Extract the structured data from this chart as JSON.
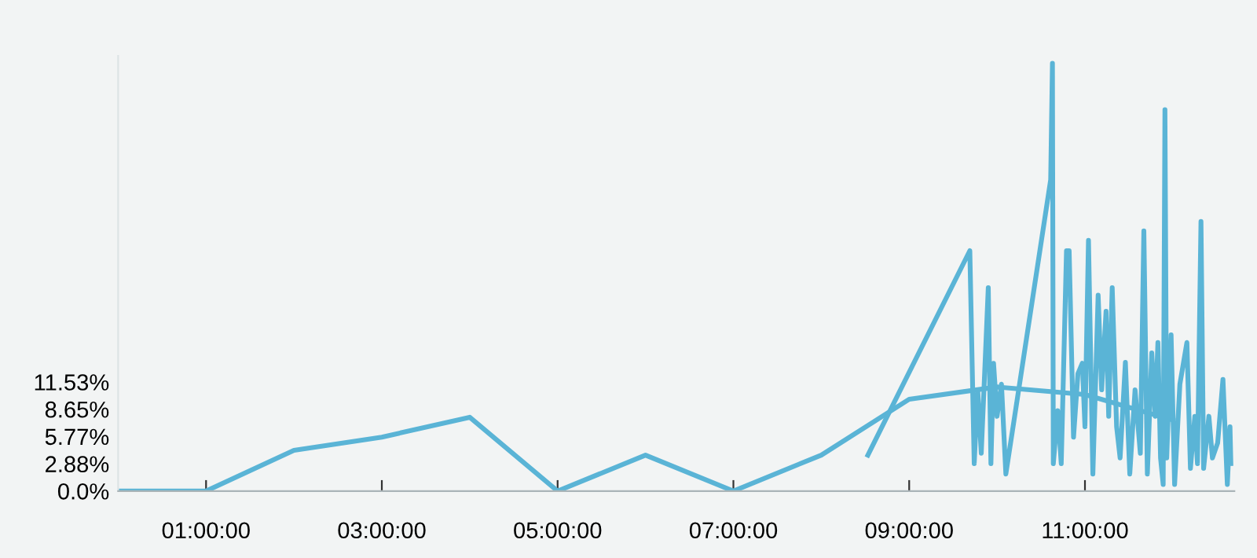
{
  "chart_data": {
    "type": "line",
    "xlim": [
      0,
      12.7
    ],
    "xticks": [
      {
        "value": 1,
        "label": "01:00:00"
      },
      {
        "value": 3,
        "label": "03:00:00"
      },
      {
        "value": 5,
        "label": "05:00:00"
      },
      {
        "value": 7,
        "label": "07:00:00"
      },
      {
        "value": 9,
        "label": "09:00:00"
      },
      {
        "value": 11,
        "label": "11:00:00"
      }
    ],
    "ylim": [
      0,
      46
    ],
    "yticks": [
      {
        "value": 0,
        "label": "0.0%"
      },
      {
        "value": 2.88,
        "label": "2.88%"
      },
      {
        "value": 5.77,
        "label": "5.77%"
      },
      {
        "value": 8.65,
        "label": "8.65%"
      },
      {
        "value": 11.53,
        "label": "11.53%"
      }
    ],
    "grid": false,
    "legend": false,
    "marker": "none",
    "line_style": "solid",
    "series": [
      {
        "color": "#5ab4d6",
        "x": [
          0,
          1,
          2,
          3,
          4,
          5,
          6,
          7,
          8,
          9,
          10,
          11,
          12
        ],
        "values": [
          0,
          0,
          4.3,
          5.7,
          7.8,
          0,
          3.8,
          0,
          3.8,
          9.7,
          11,
          10.2,
          7.5
        ]
      },
      {
        "color": "#5ab4d6",
        "x": [
          8.53,
          9.69,
          9.74,
          9.78,
          9.82,
          9.9,
          9.93,
          9.96,
          10.0,
          10.05,
          10.1,
          10.61,
          10.63,
          10.64,
          10.69,
          10.73,
          10.79,
          10.82,
          10.87,
          10.92,
          10.97,
          11.0,
          11.04,
          11.09,
          11.15,
          11.19,
          11.24,
          11.27,
          11.31,
          11.36,
          11.4,
          11.46,
          11.51,
          11.57,
          11.63,
          11.67,
          11.71,
          11.76,
          11.8,
          11.83,
          11.86,
          11.89,
          11.91,
          11.93,
          11.98,
          12.02,
          12.08,
          12.16,
          12.2,
          12.25,
          12.28,
          12.32,
          12.35,
          12.41,
          12.45,
          12.51,
          12.57,
          12.62,
          12.65,
          12.66
        ],
        "values": [
          3.8,
          25.4,
          2.9,
          10.7,
          4.0,
          21.5,
          2.9,
          13.5,
          7.9,
          11.3,
          1.8,
          32.9,
          45.2,
          2.9,
          8.5,
          2.9,
          25.4,
          25.4,
          5.7,
          12.4,
          13.5,
          6.8,
          26.5,
          1.8,
          20.7,
          10.7,
          19.0,
          7.9,
          21.5,
          6.8,
          3.5,
          13.6,
          1.8,
          10.7,
          4.0,
          27.5,
          1.8,
          14.6,
          7.9,
          15.7,
          3.5,
          0.7,
          40.3,
          3.5,
          16.5,
          0.7,
          11.3,
          15.7,
          2.4,
          7.9,
          2.9,
          28.5,
          2.4,
          7.9,
          3.5,
          5.1,
          11.8,
          0.7,
          6.8,
          2.9
        ]
      }
    ]
  }
}
